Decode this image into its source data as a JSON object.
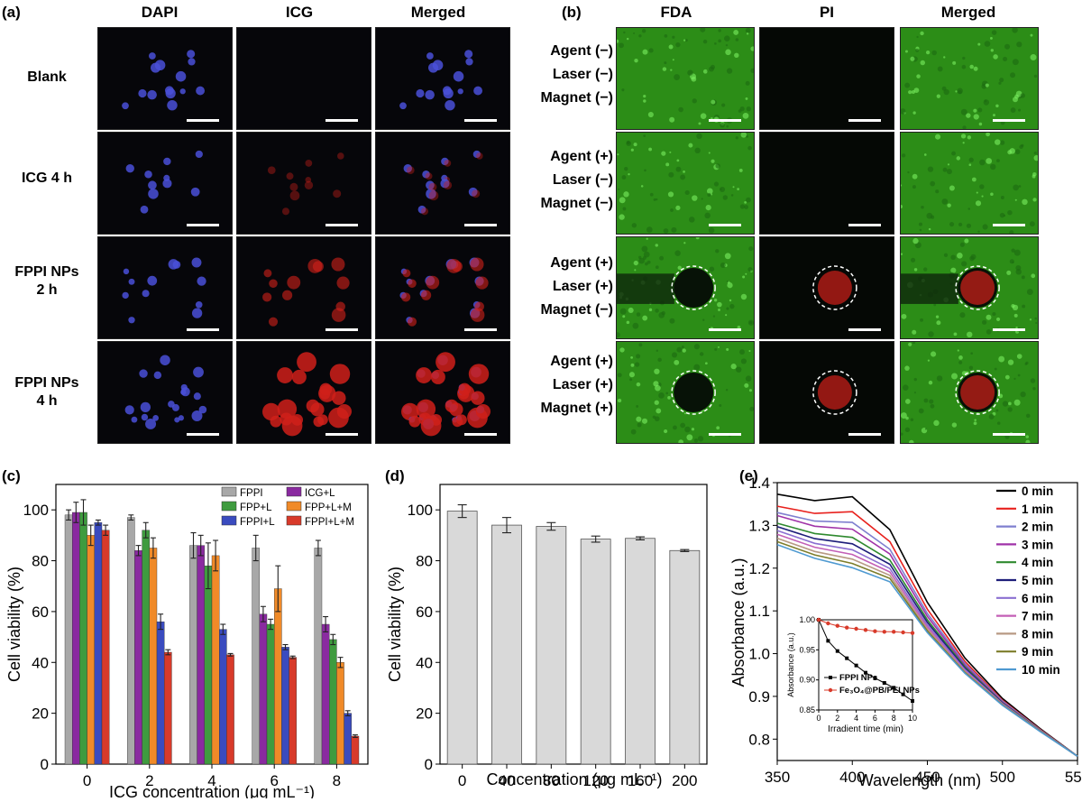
{
  "panels": {
    "a": {
      "label": "(a)",
      "columns": [
        "DAPI",
        "ICG",
        "Merged"
      ],
      "rows": [
        {
          "line1": "Blank",
          "line2": ""
        },
        {
          "line1": "ICG 4 h",
          "line2": ""
        },
        {
          "line1": "FPPI NPs",
          "line2": "2 h"
        },
        {
          "line1": "FPPI NPs",
          "line2": "4 h"
        }
      ],
      "intensity": [
        {
          "icg": 0,
          "dapi_dots": 14
        },
        {
          "icg": 0.25,
          "dapi_dots": 10
        },
        {
          "icg": 0.6,
          "dapi_dots": 12
        },
        {
          "icg": 1.0,
          "dapi_dots": 20
        }
      ]
    },
    "b": {
      "label": "(b)",
      "columns": [
        "FDA",
        "PI",
        "Merged"
      ],
      "rows": [
        {
          "agent": "Agent (−)",
          "laser": "Laser (−)",
          "magnet": "Magnet (−)",
          "circle": false
        },
        {
          "agent": "Agent (+)",
          "laser": "Laser (−)",
          "magnet": "Magnet (−)",
          "circle": false
        },
        {
          "agent": "Agent (+)",
          "laser": "Laser (+)",
          "magnet": "Magnet (−)",
          "circle": true
        },
        {
          "agent": "Agent (+)",
          "laser": "Laser (+)",
          "magnet": "Magnet (+)",
          "circle": true
        }
      ]
    },
    "c": {
      "label": "(c)"
    },
    "d": {
      "label": "(d)"
    },
    "e": {
      "label": "(e)"
    }
  },
  "colors": {
    "FPPI": "#a8a8a8",
    "FPP+L": "#3f9b3f",
    "FPPI+L": "#3a4bbf",
    "ICG+L": "#8a2aa0",
    "FPP+L+M": "#f08a28",
    "FPPI+L+M": "#d83a2a",
    "d_bar": "#d9d9d9",
    "fda_green": "#3cc11e",
    "pi_red": "#d0201a",
    "dapi_blue": "#4a50d8"
  },
  "chart_data": [
    {
      "type": "bar",
      "panel": "(c)",
      "xlabel": "ICG concentration (μg mL⁻¹)",
      "ylabel": "Cell viability (%)",
      "categories": [
        "0",
        "2",
        "4",
        "6",
        "8"
      ],
      "ylim": [
        0,
        110
      ],
      "yticks": [
        0,
        20,
        40,
        60,
        80,
        100
      ],
      "legend": [
        "FPPI",
        "FPP+L",
        "FPPI+L",
        "ICG+L",
        "FPP+L+M",
        "FPPI+L+M"
      ],
      "legend_position": "top-right",
      "series": [
        {
          "name": "FPPI",
          "values": [
            98,
            97,
            86,
            85,
            85
          ],
          "errors": [
            2,
            1,
            5,
            5,
            3
          ]
        },
        {
          "name": "ICG+L",
          "values": [
            99,
            84,
            86,
            59,
            55
          ],
          "errors": [
            4,
            2,
            4,
            3,
            3
          ]
        },
        {
          "name": "FPP+L",
          "values": [
            99,
            92,
            78,
            55,
            49
          ],
          "errors": [
            5,
            3,
            9,
            2,
            2
          ]
        },
        {
          "name": "FPP+L+M",
          "values": [
            90,
            85,
            82,
            69,
            40
          ],
          "errors": [
            4,
            4,
            6,
            9,
            2
          ]
        },
        {
          "name": "FPPI+L",
          "values": [
            95,
            56,
            53,
            46,
            20
          ],
          "errors": [
            1,
            3,
            2,
            1,
            1
          ]
        },
        {
          "name": "FPPI+L+M",
          "values": [
            92,
            44,
            43,
            42,
            11
          ],
          "errors": [
            2,
            1,
            0.5,
            0.5,
            0.5
          ]
        }
      ]
    },
    {
      "type": "bar",
      "panel": "(d)",
      "xlabel": "Concentration (μg mL⁻¹)",
      "ylabel": "Cell viability (%)",
      "categories": [
        "0",
        "40",
        "80",
        "120",
        "160",
        "200"
      ],
      "values": [
        99.5,
        94,
        93.5,
        88.5,
        88.8,
        84
      ],
      "errors": [
        2.5,
        3,
        1.5,
        1.2,
        0.6,
        0.4
      ],
      "ylim": [
        0,
        110
      ],
      "yticks": [
        0,
        20,
        40,
        60,
        80,
        100
      ]
    },
    {
      "type": "line",
      "panel": "(e)",
      "xlabel": "Wavelength (nm)",
      "ylabel": "Absorbance (a.u.)",
      "xlim": [
        350,
        550
      ],
      "ylim": [
        0.75,
        1.4
      ],
      "xticks": [
        350,
        400,
        450,
        500,
        550
      ],
      "yticks": [
        0.8,
        0.9,
        1.0,
        1.1,
        1.2,
        1.3,
        1.4
      ],
      "x": [
        350,
        375,
        400,
        425,
        450,
        475,
        500,
        525,
        550
      ],
      "series": [
        {
          "name": "0 min",
          "color": "#000000",
          "values": [
            1.373,
            1.358,
            1.367,
            1.29,
            1.12,
            0.99,
            0.895,
            0.825,
            0.76
          ]
        },
        {
          "name": "1 min",
          "color": "#e8211d",
          "values": [
            1.345,
            1.328,
            1.332,
            1.262,
            1.104,
            0.982,
            0.891,
            0.823,
            0.76
          ]
        },
        {
          "name": "2 min",
          "color": "#7f7fcf",
          "values": [
            1.33,
            1.31,
            1.307,
            1.244,
            1.094,
            0.977,
            0.889,
            0.822,
            0.76
          ]
        },
        {
          "name": "3 min",
          "color": "#a033a8",
          "values": [
            1.323,
            1.298,
            1.291,
            1.233,
            1.087,
            0.973,
            0.887,
            0.821,
            0.76
          ]
        },
        {
          "name": "4 min",
          "color": "#2f8a2f",
          "values": [
            1.305,
            1.281,
            1.272,
            1.219,
            1.079,
            0.969,
            0.885,
            0.821,
            0.76
          ]
        },
        {
          "name": "5 min",
          "color": "#1e1e7a",
          "values": [
            1.297,
            1.269,
            1.257,
            1.209,
            1.073,
            0.966,
            0.884,
            0.82,
            0.76
          ]
        },
        {
          "name": "6 min",
          "color": "#8b6fd1",
          "values": [
            1.288,
            1.258,
            1.243,
            1.199,
            1.067,
            0.963,
            0.883,
            0.82,
            0.76
          ]
        },
        {
          "name": "7 min",
          "color": "#c35fb6",
          "values": [
            1.279,
            1.249,
            1.232,
            1.191,
            1.062,
            0.96,
            0.882,
            0.82,
            0.76
          ]
        },
        {
          "name": "8 min",
          "color": "#b89a84",
          "values": [
            1.27,
            1.239,
            1.221,
            1.183,
            1.057,
            0.958,
            0.881,
            0.819,
            0.76
          ]
        },
        {
          "name": "9 min",
          "color": "#7d7d2a",
          "values": [
            1.262,
            1.231,
            1.211,
            1.176,
            1.053,
            0.956,
            0.88,
            0.819,
            0.76
          ]
        },
        {
          "name": "10 min",
          "color": "#4f9ad1",
          "values": [
            1.255,
            1.223,
            1.201,
            1.168,
            1.049,
            0.954,
            0.879,
            0.818,
            0.76
          ]
        }
      ],
      "inset": {
        "type": "line",
        "xlabel": "Irradient time (min)",
        "ylabel": "Absorbance (a.u.)",
        "xlim": [
          0,
          10
        ],
        "ylim": [
          0.85,
          1.0
        ],
        "xticks": [
          0,
          2,
          4,
          6,
          8,
          10
        ],
        "yticks": [
          0.85,
          0.9,
          0.95,
          1.0
        ],
        "x": [
          0,
          1,
          2,
          3,
          4,
          5,
          6,
          7,
          8,
          9,
          10
        ],
        "series": [
          {
            "name": "FPPI NPs",
            "color": "#000000",
            "marker": "square",
            "values": [
              1.0,
              0.965,
              0.948,
              0.936,
              0.924,
              0.912,
              0.903,
              0.895,
              0.887,
              0.876,
              0.865
            ]
          },
          {
            "name": "Fe₃O₄@PB/PEI NPs",
            "color": "#d83a2a",
            "marker": "circle",
            "values": [
              1.0,
              0.994,
              0.99,
              0.987,
              0.985,
              0.983,
              0.981,
              0.98,
              0.98,
              0.979,
              0.978
            ]
          }
        ]
      }
    }
  ]
}
